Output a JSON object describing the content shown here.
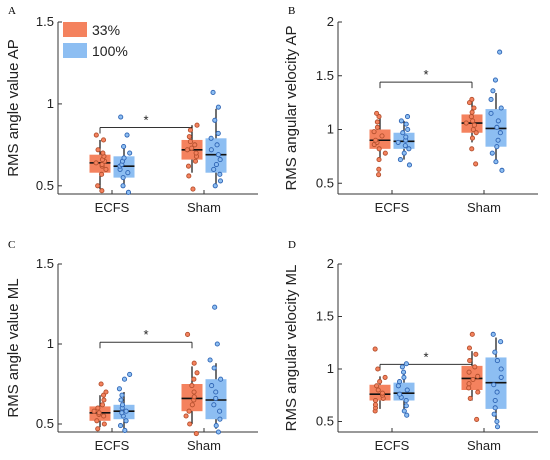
{
  "colors": {
    "c33": "#F4825E",
    "c100": "#8DBEF2",
    "c33_dot": "#B4502E",
    "c100_dot": "#2E64B4"
  },
  "legend": {
    "items": [
      "33%",
      "100%"
    ]
  },
  "chart_data": [
    {
      "panel": "A",
      "type": "box",
      "ylabel": "RMS angle value AP",
      "ylim": [
        0.45,
        1.5
      ],
      "yticks": [
        0.5,
        1,
        1.5
      ],
      "yticklabels": [
        "0.5",
        "1",
        "1.5"
      ],
      "categories": [
        "ECFS",
        "Sham"
      ],
      "significance": "*",
      "series": [
        {
          "name": "33%",
          "boxes": [
            {
              "q1": 0.58,
              "median": 0.64,
              "q3": 0.69,
              "whisker_low": 0.48,
              "whisker_high": 0.78,
              "points": [
                0.47,
                0.5,
                0.57,
                0.6,
                0.62,
                0.63,
                0.64,
                0.65,
                0.66,
                0.68,
                0.7,
                0.72,
                0.78,
                0.81
              ]
            },
            {
              "q1": 0.66,
              "median": 0.72,
              "q3": 0.78,
              "whisker_low": 0.58,
              "whisker_high": 0.87,
              "points": [
                0.48,
                0.56,
                0.62,
                0.65,
                0.68,
                0.7,
                0.72,
                0.73,
                0.75,
                0.77,
                0.8,
                0.84,
                0.87
              ]
            }
          ]
        },
        {
          "name": "100%",
          "boxes": [
            {
              "q1": 0.55,
              "median": 0.62,
              "q3": 0.68,
              "whisker_low": 0.5,
              "whisker_high": 0.75,
              "points": [
                0.46,
                0.5,
                0.55,
                0.58,
                0.6,
                0.62,
                0.63,
                0.65,
                0.67,
                0.7,
                0.74,
                0.81,
                0.92
              ]
            },
            {
              "q1": 0.58,
              "median": 0.69,
              "q3": 0.79,
              "whisker_low": 0.5,
              "whisker_high": 0.97,
              "points": [
                0.5,
                0.53,
                0.57,
                0.6,
                0.63,
                0.66,
                0.69,
                0.72,
                0.75,
                0.79,
                0.82,
                0.9,
                0.98,
                1.07
              ]
            }
          ]
        }
      ]
    },
    {
      "panel": "B",
      "type": "box",
      "ylabel": "RMS angular velocity AP",
      "ylim": [
        0.4,
        2
      ],
      "yticks": [
        0.5,
        1,
        1.5,
        2
      ],
      "yticklabels": [
        "0.5",
        "1",
        "1.5",
        "2"
      ],
      "categories": [
        "ECFS",
        "Sham"
      ],
      "significance": "*",
      "series": [
        {
          "name": "33%",
          "boxes": [
            {
              "q1": 0.82,
              "median": 0.9,
              "q3": 1.0,
              "whisker_low": 0.72,
              "whisker_high": 1.14,
              "points": [
                0.58,
                0.63,
                0.72,
                0.78,
                0.82,
                0.86,
                0.88,
                0.9,
                0.94,
                0.98,
                1.02,
                1.07,
                1.12,
                1.15
              ]
            },
            {
              "q1": 0.97,
              "median": 1.06,
              "q3": 1.14,
              "whisker_low": 0.88,
              "whisker_high": 1.26,
              "points": [
                0.68,
                0.82,
                0.92,
                0.97,
                1.0,
                1.04,
                1.06,
                1.08,
                1.12,
                1.16,
                1.2,
                1.25,
                1.28
              ]
            }
          ]
        },
        {
          "name": "100%",
          "boxes": [
            {
              "q1": 0.82,
              "median": 0.89,
              "q3": 0.97,
              "whisker_low": 0.72,
              "whisker_high": 1.08,
              "points": [
                0.67,
                0.72,
                0.78,
                0.82,
                0.85,
                0.88,
                0.9,
                0.93,
                0.97,
                1.0,
                1.05,
                1.08,
                1.12
              ]
            },
            {
              "q1": 0.84,
              "median": 1.01,
              "q3": 1.19,
              "whisker_low": 0.68,
              "whisker_high": 1.34,
              "points": [
                0.62,
                0.7,
                0.78,
                0.84,
                0.9,
                0.97,
                1.02,
                1.08,
                1.15,
                1.2,
                1.28,
                1.36,
                1.46,
                1.72
              ]
            }
          ]
        }
      ]
    },
    {
      "panel": "C",
      "type": "box",
      "ylabel": "RMS angle value ML",
      "ylim": [
        0.45,
        1.5
      ],
      "yticks": [
        0.5,
        1,
        1.5
      ],
      "yticklabels": [
        "0.5",
        "1",
        "1.5"
      ],
      "categories": [
        "ECFS",
        "Sham"
      ],
      "significance": "*",
      "series": [
        {
          "name": "33%",
          "boxes": [
            {
              "q1": 0.52,
              "median": 0.57,
              "q3": 0.61,
              "whisker_low": 0.48,
              "whisker_high": 0.68,
              "points": [
                0.47,
                0.5,
                0.52,
                0.55,
                0.56,
                0.57,
                0.58,
                0.6,
                0.62,
                0.65,
                0.68,
                0.7,
                0.75
              ]
            },
            {
              "q1": 0.58,
              "median": 0.66,
              "q3": 0.75,
              "whisker_low": 0.5,
              "whisker_high": 0.86,
              "points": [
                0.44,
                0.5,
                0.55,
                0.58,
                0.62,
                0.65,
                0.67,
                0.7,
                0.74,
                0.78,
                0.82,
                0.88,
                1.06
              ]
            }
          ]
        },
        {
          "name": "100%",
          "boxes": [
            {
              "q1": 0.53,
              "median": 0.58,
              "q3": 0.62,
              "whisker_low": 0.47,
              "whisker_high": 0.7,
              "points": [
                0.46,
                0.49,
                0.52,
                0.55,
                0.57,
                0.58,
                0.6,
                0.62,
                0.65,
                0.68,
                0.72,
                0.78,
                0.81
              ]
            },
            {
              "q1": 0.53,
              "median": 0.65,
              "q3": 0.78,
              "whisker_low": 0.47,
              "whisker_high": 0.88,
              "points": [
                0.45,
                0.49,
                0.53,
                0.58,
                0.62,
                0.66,
                0.7,
                0.74,
                0.78,
                0.85,
                0.9,
                1.0,
                1.23
              ]
            }
          ]
        }
      ]
    },
    {
      "panel": "D",
      "type": "box",
      "ylabel": "RMS angular velocity ML",
      "ylim": [
        0.4,
        2
      ],
      "yticks": [
        0.5,
        1,
        1.5,
        2
      ],
      "yticklabels": [
        "0.5",
        "1",
        "1.5",
        "2"
      ],
      "categories": [
        "ECFS",
        "Sham"
      ],
      "significance": "*",
      "series": [
        {
          "name": "33%",
          "boxes": [
            {
              "q1": 0.7,
              "median": 0.76,
              "q3": 0.85,
              "whisker_low": 0.62,
              "whisker_high": 0.93,
              "points": [
                0.6,
                0.63,
                0.66,
                0.7,
                0.72,
                0.75,
                0.77,
                0.8,
                0.84,
                0.88,
                0.92,
                1.0,
                1.19
              ]
            },
            {
              "q1": 0.8,
              "median": 0.91,
              "q3": 1.03,
              "whisker_low": 0.7,
              "whisker_high": 1.17,
              "points": [
                0.52,
                0.72,
                0.78,
                0.82,
                0.86,
                0.9,
                0.93,
                0.97,
                1.02,
                1.08,
                1.14,
                1.2,
                1.33
              ]
            }
          ]
        },
        {
          "name": "100%",
          "boxes": [
            {
              "q1": 0.7,
              "median": 0.77,
              "q3": 0.87,
              "whisker_low": 0.58,
              "whisker_high": 0.97,
              "points": [
                0.56,
                0.6,
                0.65,
                0.7,
                0.73,
                0.76,
                0.8,
                0.84,
                0.88,
                0.92,
                0.97,
                1.02,
                1.05
              ]
            },
            {
              "q1": 0.62,
              "median": 0.87,
              "q3": 1.11,
              "whisker_low": 0.48,
              "whisker_high": 1.3,
              "points": [
                0.45,
                0.5,
                0.57,
                0.63,
                0.7,
                0.78,
                0.85,
                0.92,
                1.0,
                1.08,
                1.16,
                1.26,
                1.33
              ]
            }
          ]
        }
      ]
    }
  ]
}
